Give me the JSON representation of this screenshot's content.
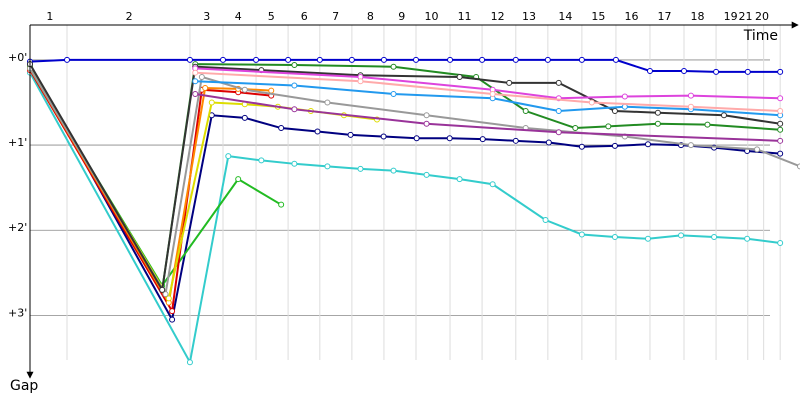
{
  "chart_data": {
    "type": "line",
    "x_axis_label": "Time",
    "y_axis_label": "Gap",
    "xlim": [
      0,
      23.3
    ],
    "ylim": [
      -0.41,
      3.7
    ],
    "xticks": [
      {
        "value": 0.6,
        "label": "1"
      },
      {
        "value": 3.0,
        "label": "2"
      },
      {
        "value": 5.35,
        "label": "3"
      },
      {
        "value": 6.3,
        "label": "4"
      },
      {
        "value": 7.3,
        "label": "5"
      },
      {
        "value": 8.3,
        "label": "6"
      },
      {
        "value": 9.25,
        "label": "7"
      },
      {
        "value": 10.3,
        "label": "8"
      },
      {
        "value": 11.25,
        "label": "9"
      },
      {
        "value": 12.15,
        "label": "10"
      },
      {
        "value": 13.15,
        "label": "11"
      },
      {
        "value": 14.15,
        "label": "12"
      },
      {
        "value": 15.1,
        "label": "13"
      },
      {
        "value": 16.2,
        "label": "14"
      },
      {
        "value": 17.2,
        "label": "15"
      },
      {
        "value": 18.2,
        "label": "16"
      },
      {
        "value": 19.2,
        "label": "17"
      },
      {
        "value": 20.2,
        "label": "18"
      },
      {
        "value": 21.2,
        "label": "19"
      },
      {
        "value": 21.65,
        "label": "21"
      },
      {
        "value": 22.15,
        "label": "20"
      }
    ],
    "x_grid": [
      1.12,
      4.84,
      5.84,
      6.84,
      7.81,
      8.77,
      9.74,
      10.71,
      11.68,
      12.71,
      13.68,
      14.7,
      15.67,
      16.7,
      17.73,
      18.76,
      19.79,
      20.76,
      21.72,
      22.2,
      22.7
    ],
    "yticks": [
      {
        "value": 0,
        "label": "+0'"
      },
      {
        "value": 1,
        "label": "+1'"
      },
      {
        "value": 2,
        "label": "+2'"
      },
      {
        "value": 3,
        "label": "+3'"
      }
    ],
    "series": [
      {
        "color": "#0000cc",
        "x": [
          0,
          1.12,
          4.84,
          5.84,
          6.84,
          7.81,
          8.77,
          9.74,
          10.71,
          11.68,
          12.71,
          13.68,
          14.7,
          15.67,
          16.7,
          17.73,
          18.76,
          19.79,
          20.76,
          21.72,
          22.7
        ],
        "values": [
          0.02,
          0,
          0,
          0,
          0,
          0,
          0,
          0,
          0,
          0,
          0,
          0,
          0,
          0,
          0,
          0,
          0.13,
          0.13,
          0.14,
          0.14,
          0.14
        ]
      },
      {
        "color": "#000080",
        "x": [
          0,
          4.3,
          5.5,
          6.5,
          7.6,
          8.7,
          9.7,
          10.7,
          11.7,
          12.7,
          13.7,
          14.7,
          15.7,
          16.7,
          17.7,
          18.7,
          19.7,
          20.7,
          21.7,
          22.7
        ],
        "values": [
          0.05,
          3.05,
          0.65,
          0.68,
          0.8,
          0.84,
          0.88,
          0.9,
          0.92,
          0.92,
          0.93,
          0.95,
          0.97,
          1.02,
          1.01,
          0.99,
          1.0,
          1.03,
          1.07,
          1.1
        ]
      },
      {
        "color": "#33cccc",
        "x": [
          0,
          4.84,
          6.0,
          7.0,
          8.0,
          9.0,
          10.0,
          11.0,
          12.0,
          13.0,
          14.0,
          15.6,
          16.7,
          17.7,
          18.7,
          19.7,
          20.7,
          21.7,
          22.7
        ],
        "values": [
          0.15,
          3.55,
          1.13,
          1.18,
          1.22,
          1.25,
          1.28,
          1.3,
          1.35,
          1.4,
          1.46,
          1.88,
          2.05,
          2.08,
          2.1,
          2.06,
          2.08,
          2.1,
          2.15
        ]
      },
      {
        "color": "#22bb22",
        "x": [
          0,
          4.0,
          6.3,
          7.6
        ],
        "values": [
          0.1,
          2.65,
          1.4,
          1.7
        ]
      },
      {
        "color": "#228b22",
        "x": [
          0,
          4.0,
          5.0,
          8.0,
          11.0,
          13.5,
          15.0,
          16.5,
          17.5,
          19.0,
          20.5,
          22.7
        ],
        "values": [
          0.08,
          2.7,
          0.05,
          0.06,
          0.08,
          0.2,
          0.6,
          0.8,
          0.78,
          0.75,
          0.76,
          0.82
        ]
      },
      {
        "color": "#dd0000",
        "x": [
          0,
          4.3,
          5.2,
          6.3,
          7.3
        ],
        "values": [
          0.12,
          2.95,
          0.35,
          0.38,
          0.42
        ]
      },
      {
        "color": "#ff8800",
        "x": [
          0,
          4.2,
          5.3,
          6.3,
          7.3
        ],
        "values": [
          0.1,
          2.85,
          0.33,
          0.34,
          0.36
        ]
      },
      {
        "color": "#dddd00",
        "x": [
          0,
          4.2,
          5.5,
          6.5,
          7.5,
          8.5,
          9.5,
          10.5
        ],
        "values": [
          0.1,
          2.8,
          0.5,
          0.52,
          0.55,
          0.6,
          0.65,
          0.7
        ]
      },
      {
        "color": "#999999",
        "x": [
          0,
          4.1,
          5.2,
          6.5,
          9.0,
          12.0,
          15.0,
          18.0,
          20.0,
          22.0,
          23.3
        ],
        "values": [
          0.1,
          2.75,
          0.2,
          0.35,
          0.5,
          0.65,
          0.8,
          0.9,
          1.0,
          1.05,
          1.25
        ]
      },
      {
        "color": "#333333",
        "x": [
          0,
          4.0,
          5.0,
          7.0,
          10.0,
          13.0,
          14.5,
          16.0,
          17.7,
          19.0,
          21.0,
          22.7
        ],
        "values": [
          0.05,
          2.7,
          0.08,
          0.12,
          0.18,
          0.2,
          0.27,
          0.27,
          0.6,
          0.62,
          0.65,
          0.75
        ]
      },
      {
        "color": "#2299ee",
        "x": [
          5.0,
          8.0,
          11.0,
          14.0,
          16.0,
          18.0,
          20.0,
          22.7
        ],
        "values": [
          0.25,
          0.3,
          0.4,
          0.45,
          0.6,
          0.55,
          0.58,
          0.65
        ]
      },
      {
        "color": "#dd44dd",
        "x": [
          5.0,
          10.0,
          14.0,
          16.0,
          18.0,
          20.0,
          22.7
        ],
        "values": [
          0.1,
          0.2,
          0.35,
          0.45,
          0.43,
          0.42,
          0.45
        ]
      },
      {
        "color": "#ffaaaa",
        "x": [
          5.0,
          10.0,
          14.0,
          17.0,
          20.0,
          22.7
        ],
        "values": [
          0.15,
          0.25,
          0.4,
          0.5,
          0.55,
          0.6
        ]
      },
      {
        "color": "#993399",
        "x": [
          5.0,
          8.0,
          12.0,
          16.0,
          22.7
        ],
        "values": [
          0.4,
          0.58,
          0.75,
          0.85,
          0.95
        ]
      }
    ]
  }
}
